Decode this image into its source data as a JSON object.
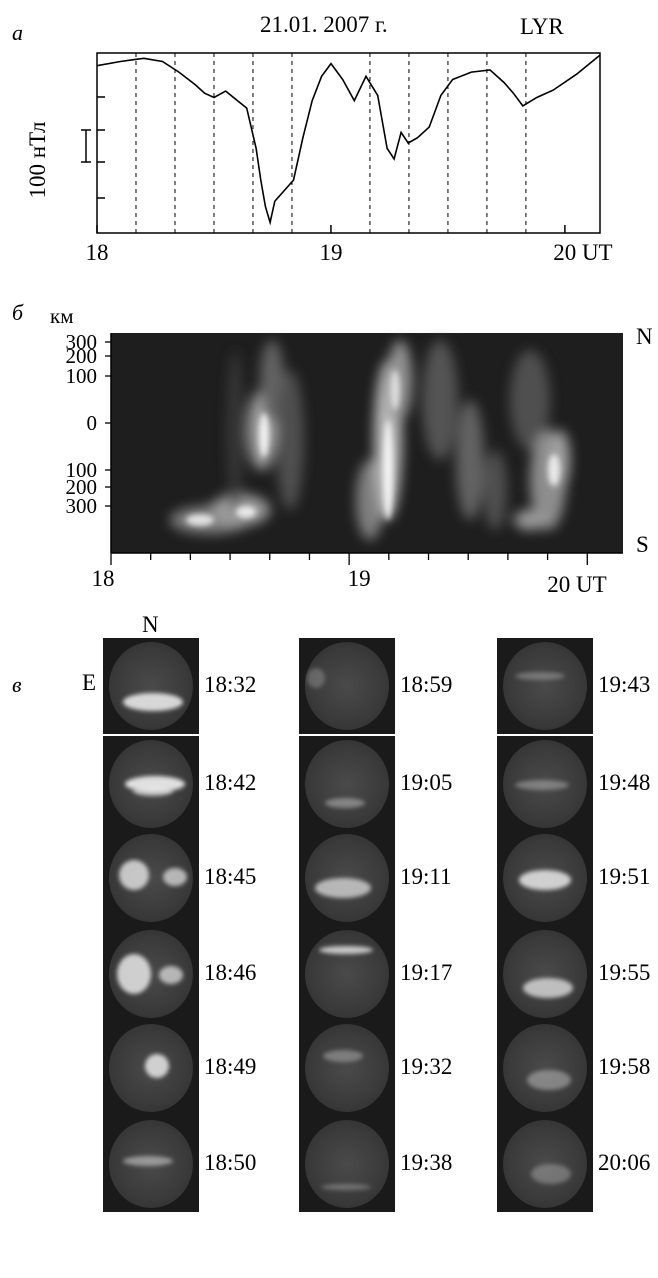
{
  "panel_a": {
    "letter": "а",
    "date": "21.01. 2007 г.",
    "station": "LYR",
    "scale_label": "100 нТл",
    "xticks": [
      "18",
      "19",
      "20 UT"
    ]
  },
  "panel_b": {
    "letter": "б",
    "km_label": "км",
    "north": "N",
    "south": "S",
    "ylabels": [
      "300",
      "200",
      "100",
      "0",
      "100",
      "200",
      "300"
    ],
    "xticks": [
      "18",
      "19",
      "20  UT"
    ]
  },
  "panel_c": {
    "letter": "в",
    "north": "N",
    "east": "E",
    "columns": [
      [
        "18:32",
        "18:42",
        "18:45",
        "18:46",
        "18:49",
        "18:50"
      ],
      [
        "18:59",
        "19:05",
        "19:11",
        "19:17",
        "19:32",
        "19:38"
      ],
      [
        "19:43",
        "19:48",
        "19:51",
        "19:55",
        "19:58",
        "20:06"
      ]
    ]
  },
  "chart_data": {
    "type": "line",
    "xlabel": "UT",
    "xlim": [
      18,
      20.15
    ],
    "x": [
      18.0,
      18.1,
      18.2,
      18.28,
      18.35,
      18.42,
      18.46,
      18.5,
      18.55,
      18.6,
      18.64,
      18.68,
      18.7,
      18.72,
      18.74,
      18.76,
      18.8,
      18.84,
      18.88,
      18.92,
      18.96,
      19.0,
      19.05,
      19.1,
      19.15,
      19.2,
      19.24,
      19.27,
      19.3,
      19.33,
      19.37,
      19.42,
      19.47,
      19.52,
      19.6,
      19.68,
      19.74,
      19.78,
      19.82,
      19.88,
      19.95,
      20.05,
      20.15
    ],
    "values": [
      88,
      92,
      95,
      92,
      82,
      70,
      62,
      58,
      64,
      55,
      48,
      10,
      -20,
      -45,
      -60,
      -40,
      -30,
      -20,
      20,
      55,
      78,
      90,
      75,
      55,
      78,
      60,
      10,
      0,
      25,
      15,
      20,
      30,
      60,
      75,
      82,
      84,
      72,
      62,
      50,
      58,
      65,
      80,
      98
    ],
    "units": "нТл"
  }
}
